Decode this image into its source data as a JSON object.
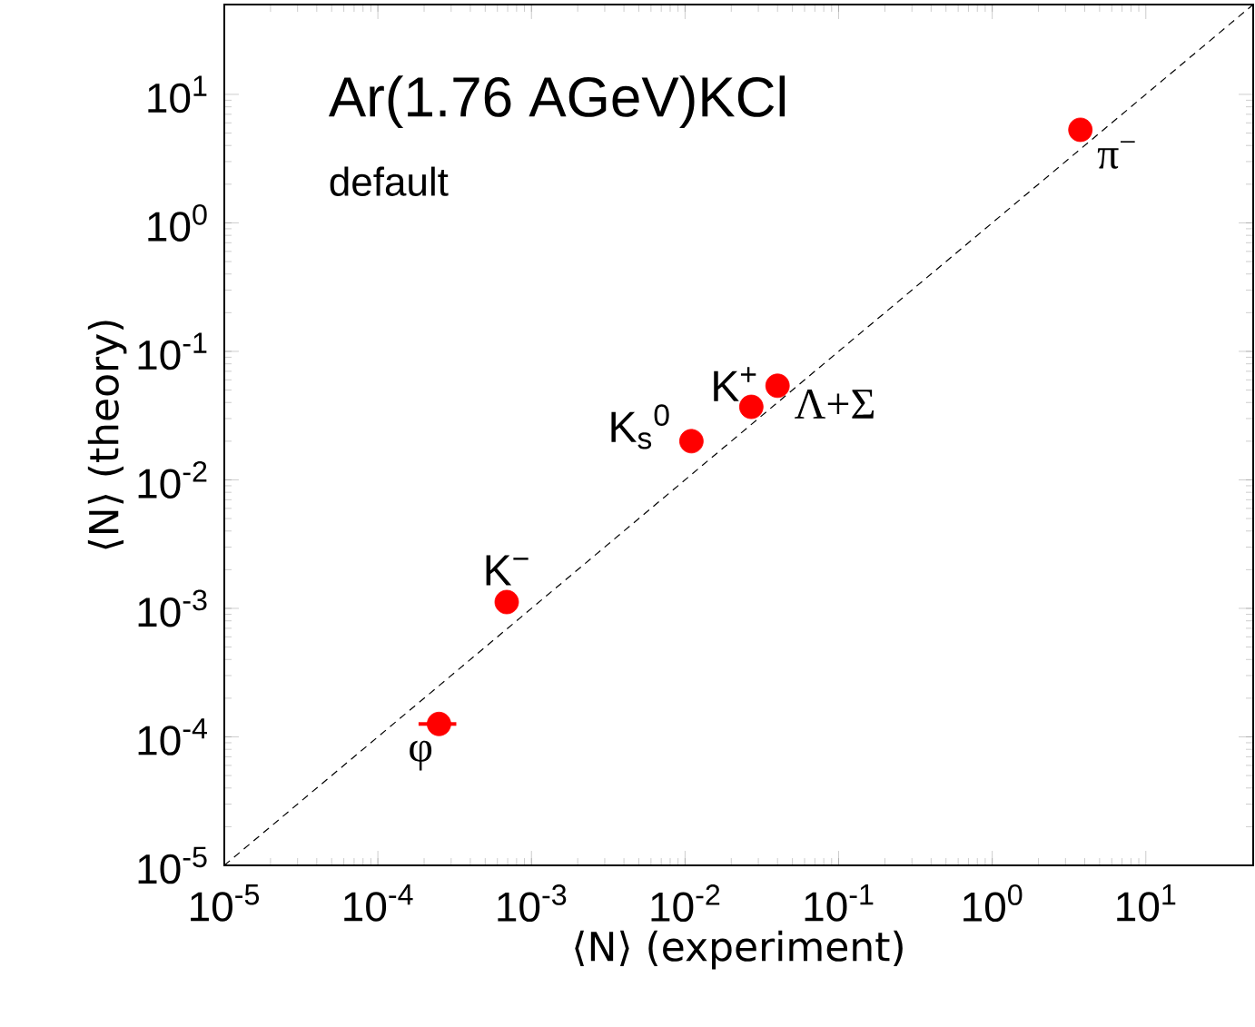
{
  "chart_data": {
    "type": "scatter",
    "title": "Ar(1.76 AGeV)KCl",
    "subtitle": "default",
    "xlabel": "⟨N⟩ (experiment)",
    "ylabel": "⟨N⟩ (theory)",
    "log": "xy",
    "xlim": [
      1e-05,
      50
    ],
    "ylim": [
      1e-05,
      50
    ],
    "xticks": [
      {
        "value": 1e-05,
        "label": "10$^{-5}$"
      },
      {
        "value": 0.0001,
        "label": "10$^{-4}$"
      },
      {
        "value": 0.001,
        "label": "10$^{-3}$"
      },
      {
        "value": 0.01,
        "label": "10$^{-2}$"
      },
      {
        "value": 0.1,
        "label": "10$^{-1}$"
      },
      {
        "value": 1,
        "label": "10$^{0}$"
      },
      {
        "value": 10,
        "label": "10$^{1}$"
      }
    ],
    "yticks": [
      {
        "value": 1e-05,
        "label": "10$^{-5}$"
      },
      {
        "value": 0.0001,
        "label": "10$^{-4}$"
      },
      {
        "value": 0.001,
        "label": "10$^{-3}$"
      },
      {
        "value": 0.01,
        "label": "10$^{-2}$"
      },
      {
        "value": 0.1,
        "label": "10$^{-1}$"
      },
      {
        "value": 1,
        "label": "10$^{0}$"
      },
      {
        "value": 10,
        "label": "10$^{1}$"
      }
    ],
    "series": [
      {
        "type": "line",
        "color": "#000000",
        "line_style": "dashed",
        "marker": "none",
        "x": [
          1e-05,
          50
        ],
        "values": [
          1e-05,
          50
        ]
      },
      {
        "color": "#ff0000",
        "marker": "circle",
        "x": [
          0.00025,
          0.00069,
          0.011,
          0.027,
          0.04,
          3.75
        ],
        "values": [
          0.000126,
          0.00112,
          0.02,
          0.037,
          0.054,
          5.3
        ],
        "xerrors": [
          [
            0.000184,
            0.000324
          ],
          [
            0.00058,
            0.00082
          ],
          null,
          null,
          null,
          null
        ]
      }
    ],
    "annotations": [
      {
        "text": "φ",
        "x": 0.00025,
        "y": 0.000126
      },
      {
        "text": "K$^{−}$",
        "x": 0.00069,
        "y": 0.00112
      },
      {
        "text": "K$_{s}$$^{0}$",
        "x": 0.011,
        "y": 0.02
      },
      {
        "text": "K$^{+}$",
        "x": 0.027,
        "y": 0.037
      },
      {
        "text": "Λ+Σ",
        "x": 0.04,
        "y": 0.054
      },
      {
        "text": "π$^{−}$",
        "x": 3.75,
        "y": 5.3
      }
    ]
  }
}
